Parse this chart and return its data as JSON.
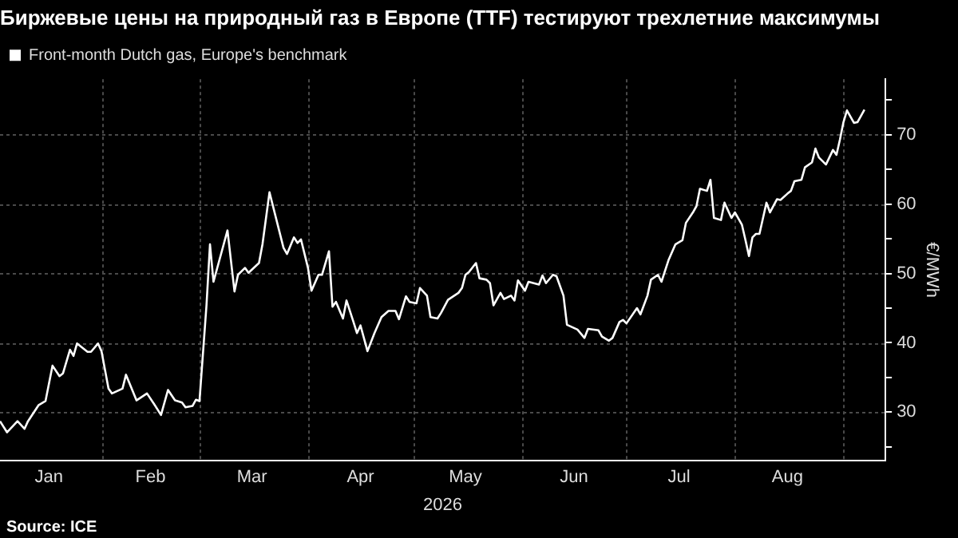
{
  "chart_data": {
    "type": "line",
    "title": "Биржевые цены на природный газ в Европе (TTF) тестируют трехлетние максимумы",
    "xlabel": "2026",
    "ylabel": "€/MWh",
    "annotations": [
      "Source: ICE"
    ],
    "legend": "top left",
    "grid": true,
    "marker": "none",
    "line_style": "solid",
    "xlim": [
      "2026-01-03",
      "2026-09-13"
    ],
    "xticks": [
      {
        "value": "2026-02-01",
        "label": null
      },
      {
        "value": "2026-03-01",
        "label": null
      },
      {
        "value": "2026-04-01",
        "label": null
      },
      {
        "value": "2026-05-01",
        "label": null
      },
      {
        "value": "2026-06-01",
        "label": null
      },
      {
        "value": "2026-07-01",
        "label": null
      },
      {
        "value": "2026-08-01",
        "label": null
      },
      {
        "value": "2026-09-01",
        "label": null
      },
      {
        "value": "2026-01-17",
        "label": "Jan"
      },
      {
        "value": "2026-02-15",
        "label": "Feb"
      },
      {
        "value": "2026-03-16",
        "label": "Mar"
      },
      {
        "value": "2026-04-16",
        "label": "Apr"
      },
      {
        "value": "2026-05-16",
        "label": "May"
      },
      {
        "value": "2026-06-16",
        "label": "Jun"
      },
      {
        "value": "2026-07-16",
        "label": "Jul"
      },
      {
        "value": "2026-08-16",
        "label": "Aug"
      }
    ],
    "ylim": [
      23,
      78
    ],
    "yticks": [
      {
        "value": 25,
        "label": null
      },
      30,
      {
        "value": 35,
        "label": null
      },
      40,
      {
        "value": 45,
        "label": null
      },
      50,
      {
        "value": 55,
        "label": null
      },
      60,
      {
        "value": 65,
        "label": null
      },
      70,
      {
        "value": 75,
        "label": null
      }
    ],
    "series": [
      {
        "name": "Front-month Dutch gas, Europe's benchmark",
        "color": "#ffffff",
        "x": [
          "2026-01-03",
          "2026-01-05",
          "2026-01-08",
          "2026-01-10",
          "2026-01-11",
          "2026-01-14",
          "2026-01-16",
          "2026-01-18",
          "2026-01-20",
          "2026-01-21",
          "2026-01-23",
          "2026-01-24",
          "2026-01-25",
          "2026-01-28",
          "2026-01-29",
          "2026-01-31",
          "2026-02-01",
          "2026-02-03",
          "2026-02-04",
          "2026-02-07",
          "2026-02-08",
          "2026-02-11",
          "2026-02-14",
          "2026-02-16",
          "2026-02-18",
          "2026-02-20",
          "2026-02-22",
          "2026-02-24",
          "2026-02-25",
          "2026-02-27",
          "2026-02-28",
          "2026-03-01",
          "2026-03-03",
          "2026-03-04",
          "2026-03-05",
          "2026-03-09",
          "2026-03-11",
          "2026-03-12",
          "2026-03-14",
          "2026-03-15",
          "2026-03-18",
          "2026-03-19",
          "2026-03-21",
          "2026-03-25",
          "2026-03-26",
          "2026-03-28",
          "2026-03-29",
          "2026-03-30",
          "2026-04-01",
          "2026-04-02",
          "2026-04-04",
          "2026-04-05",
          "2026-04-07",
          "2026-04-08",
          "2026-04-09",
          "2026-04-11",
          "2026-04-12",
          "2026-04-14",
          "2026-04-15",
          "2026-04-16",
          "2026-04-18",
          "2026-04-20",
          "2026-04-22",
          "2026-04-24",
          "2026-04-26",
          "2026-04-27",
          "2026-04-29",
          "2026-04-30",
          "2026-05-02",
          "2026-05-03",
          "2026-05-05",
          "2026-05-06",
          "2026-05-08",
          "2026-05-09",
          "2026-05-11",
          "2026-05-14",
          "2026-05-15",
          "2026-05-16",
          "2026-05-17",
          "2026-05-19",
          "2026-05-20",
          "2026-05-22",
          "2026-05-23",
          "2026-05-24",
          "2026-05-26",
          "2026-05-27",
          "2026-05-29",
          "2026-05-30",
          "2026-05-31",
          "2026-06-02",
          "2026-06-03",
          "2026-06-06",
          "2026-06-07",
          "2026-06-08",
          "2026-06-10",
          "2026-06-11",
          "2026-06-13",
          "2026-06-14",
          "2026-06-17",
          "2026-06-19",
          "2026-06-20",
          "2026-06-23",
          "2026-06-24",
          "2026-06-26",
          "2026-06-27",
          "2026-06-29",
          "2026-06-30",
          "2026-07-01",
          "2026-07-04",
          "2026-07-05",
          "2026-07-07",
          "2026-07-08",
          "2026-07-10",
          "2026-07-11",
          "2026-07-13",
          "2026-07-15",
          "2026-07-17",
          "2026-07-18",
          "2026-07-20",
          "2026-07-21",
          "2026-07-22",
          "2026-07-24",
          "2026-07-25",
          "2026-07-26",
          "2026-07-28",
          "2026-07-29",
          "2026-07-31",
          "2026-08-01",
          "2026-08-03",
          "2026-08-04",
          "2026-08-05",
          "2026-08-06",
          "2026-08-07",
          "2026-08-08",
          "2026-08-10",
          "2026-08-11",
          "2026-08-13",
          "2026-08-14",
          "2026-08-16",
          "2026-08-17",
          "2026-08-18",
          "2026-08-20",
          "2026-08-21",
          "2026-08-23",
          "2026-08-24",
          "2026-08-25",
          "2026-08-27",
          "2026-08-29",
          "2026-08-30",
          "2026-08-31",
          "2026-09-01",
          "2026-09-02",
          "2026-09-04",
          "2026-09-05",
          "2026-09-07"
        ],
        "values": [
          28.7,
          27.1,
          28.7,
          27.6,
          28.7,
          31.0,
          31.6,
          36.7,
          35.2,
          35.6,
          39.0,
          38.1,
          39.9,
          38.7,
          38.7,
          39.9,
          38.8,
          33.4,
          32.7,
          33.4,
          35.4,
          31.7,
          32.7,
          31.2,
          29.6,
          33.2,
          31.7,
          31.4,
          30.7,
          30.9,
          31.8,
          31.6,
          45.4,
          54.2,
          48.8,
          56.2,
          47.4,
          49.8,
          50.8,
          50.1,
          51.5,
          54.2,
          61.7,
          53.7,
          52.8,
          55.2,
          54.4,
          54.9,
          50.8,
          47.5,
          49.8,
          49.8,
          53.2,
          45.2,
          45.9,
          43.5,
          46.1,
          43.0,
          41.4,
          42.5,
          38.8,
          41.4,
          43.7,
          44.6,
          44.6,
          43.4,
          46.7,
          45.9,
          45.7,
          47.9,
          46.8,
          43.7,
          43.5,
          44.3,
          46.2,
          47.2,
          47.9,
          49.8,
          50.2,
          51.5,
          49.3,
          49.1,
          48.6,
          45.4,
          47.2,
          46.3,
          46.8,
          46.1,
          49.0,
          47.5,
          48.8,
          48.4,
          49.7,
          48.6,
          49.8,
          49.6,
          46.8,
          42.6,
          41.9,
          40.7,
          42.0,
          41.8,
          40.9,
          40.3,
          40.7,
          43.0,
          43.3,
          42.8,
          45.0,
          44.1,
          46.8,
          49.1,
          49.8,
          48.8,
          51.9,
          54.2,
          54.8,
          57.3,
          58.8,
          59.7,
          62.2,
          61.9,
          63.5,
          58.0,
          57.7,
          60.2,
          58.0,
          58.8,
          57.0,
          54.8,
          52.5,
          55.2,
          55.7,
          55.7,
          60.2,
          58.8,
          60.7,
          60.6,
          61.5,
          61.9,
          63.3,
          63.5,
          65.3,
          66.0,
          68.0,
          66.7,
          65.7,
          67.8,
          67.1,
          69.3,
          71.8,
          73.5,
          71.7,
          71.8,
          73.6
        ]
      }
    ]
  }
}
